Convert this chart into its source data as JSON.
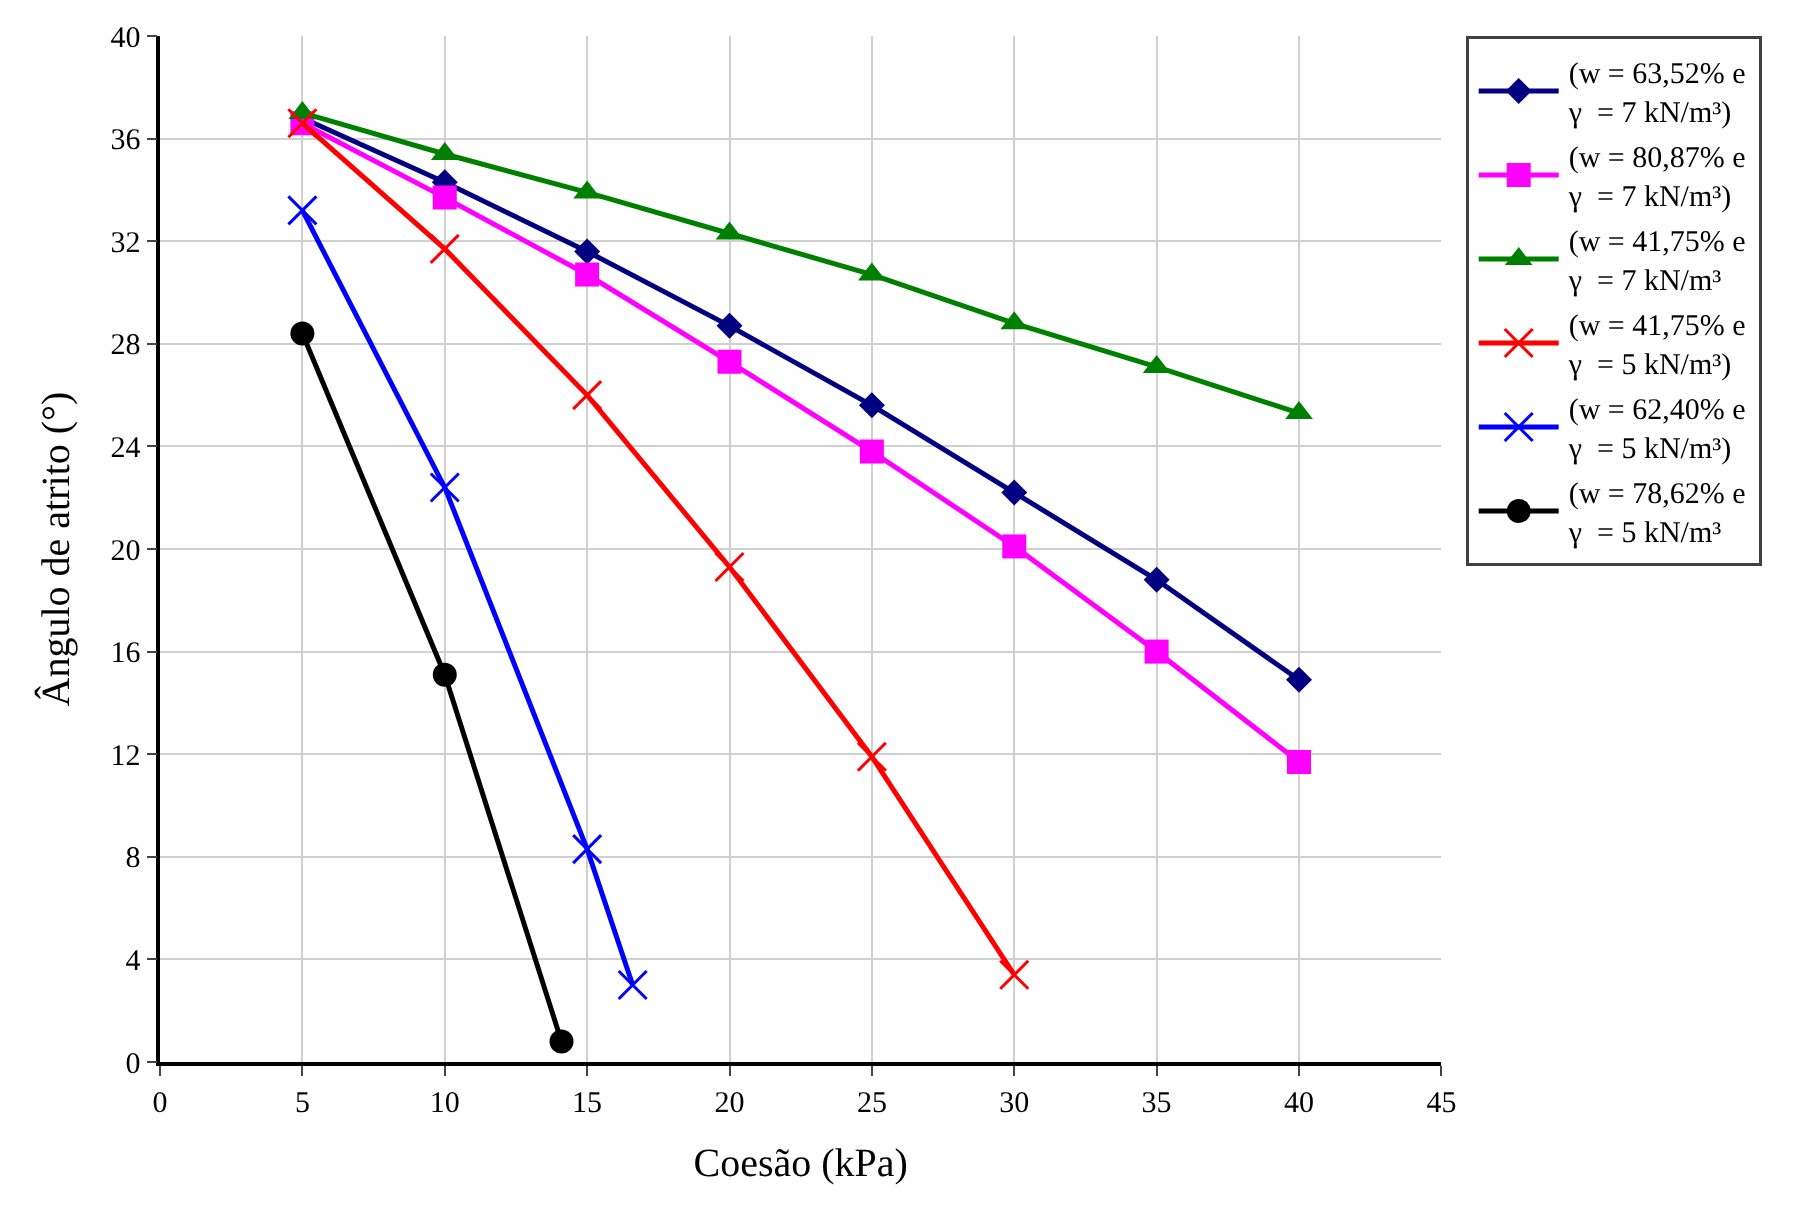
{
  "chart_data": {
    "type": "line",
    "xlabel": "Coesão (kPa)",
    "ylabel": "Ângulo de atrito (°)",
    "xlim": [
      0,
      45
    ],
    "xticks": [
      0,
      5,
      10,
      15,
      20,
      25,
      30,
      35,
      40,
      45
    ],
    "ylim": [
      0,
      40
    ],
    "yticks": [
      0,
      4,
      8,
      12,
      16,
      20,
      24,
      28,
      32,
      36,
      40
    ],
    "grid": true,
    "legend": "right",
    "series": [
      {
        "name": "(w = 63,52% e\nγ  = 7 kN/m³)",
        "color": "#000080",
        "marker": "diamond",
        "x": [
          5,
          10,
          15,
          20,
          25,
          30,
          35,
          40
        ],
        "values": [
          36.8,
          34.3,
          31.6,
          28.7,
          25.6,
          22.2,
          18.8,
          14.9
        ]
      },
      {
        "name": "(w = 80,87% e\nγ  = 7 kN/m³)",
        "color": "#ff00ff",
        "marker": "square",
        "x": [
          5,
          10,
          15,
          20,
          25,
          30,
          35,
          40
        ],
        "values": [
          36.6,
          33.7,
          30.7,
          27.3,
          23.8,
          20.1,
          16.0,
          11.7
        ]
      },
      {
        "name": "(w = 41,75% e\nγ  = 7 kN/m³",
        "color": "#008000",
        "marker": "triangle",
        "x": [
          5,
          10,
          15,
          20,
          25,
          30,
          35,
          40
        ],
        "values": [
          37.0,
          35.4,
          33.9,
          32.3,
          30.7,
          28.8,
          27.1,
          25.3
        ]
      },
      {
        "name": "(w = 41,75% e\nγ  = 5 kN/m³)",
        "color": "#ff0000",
        "marker": "cross",
        "x": [
          5,
          10,
          15,
          20,
          25,
          30
        ],
        "values": [
          36.6,
          31.7,
          26.0,
          19.3,
          11.9,
          3.4
        ]
      },
      {
        "name": "(w = 62,40% e\nγ  = 5 kN/m³)",
        "color": "#0000ff",
        "marker": "cross",
        "x": [
          5,
          10,
          15,
          16.6
        ],
        "values": [
          33.2,
          22.4,
          8.3,
          3.0
        ]
      },
      {
        "name": "(w = 78,62% e\nγ  = 5 kN/m³",
        "color": "#000000",
        "marker": "circle",
        "x": [
          5,
          10,
          14.1
        ],
        "values": [
          28.4,
          15.1,
          0.8
        ]
      }
    ]
  }
}
